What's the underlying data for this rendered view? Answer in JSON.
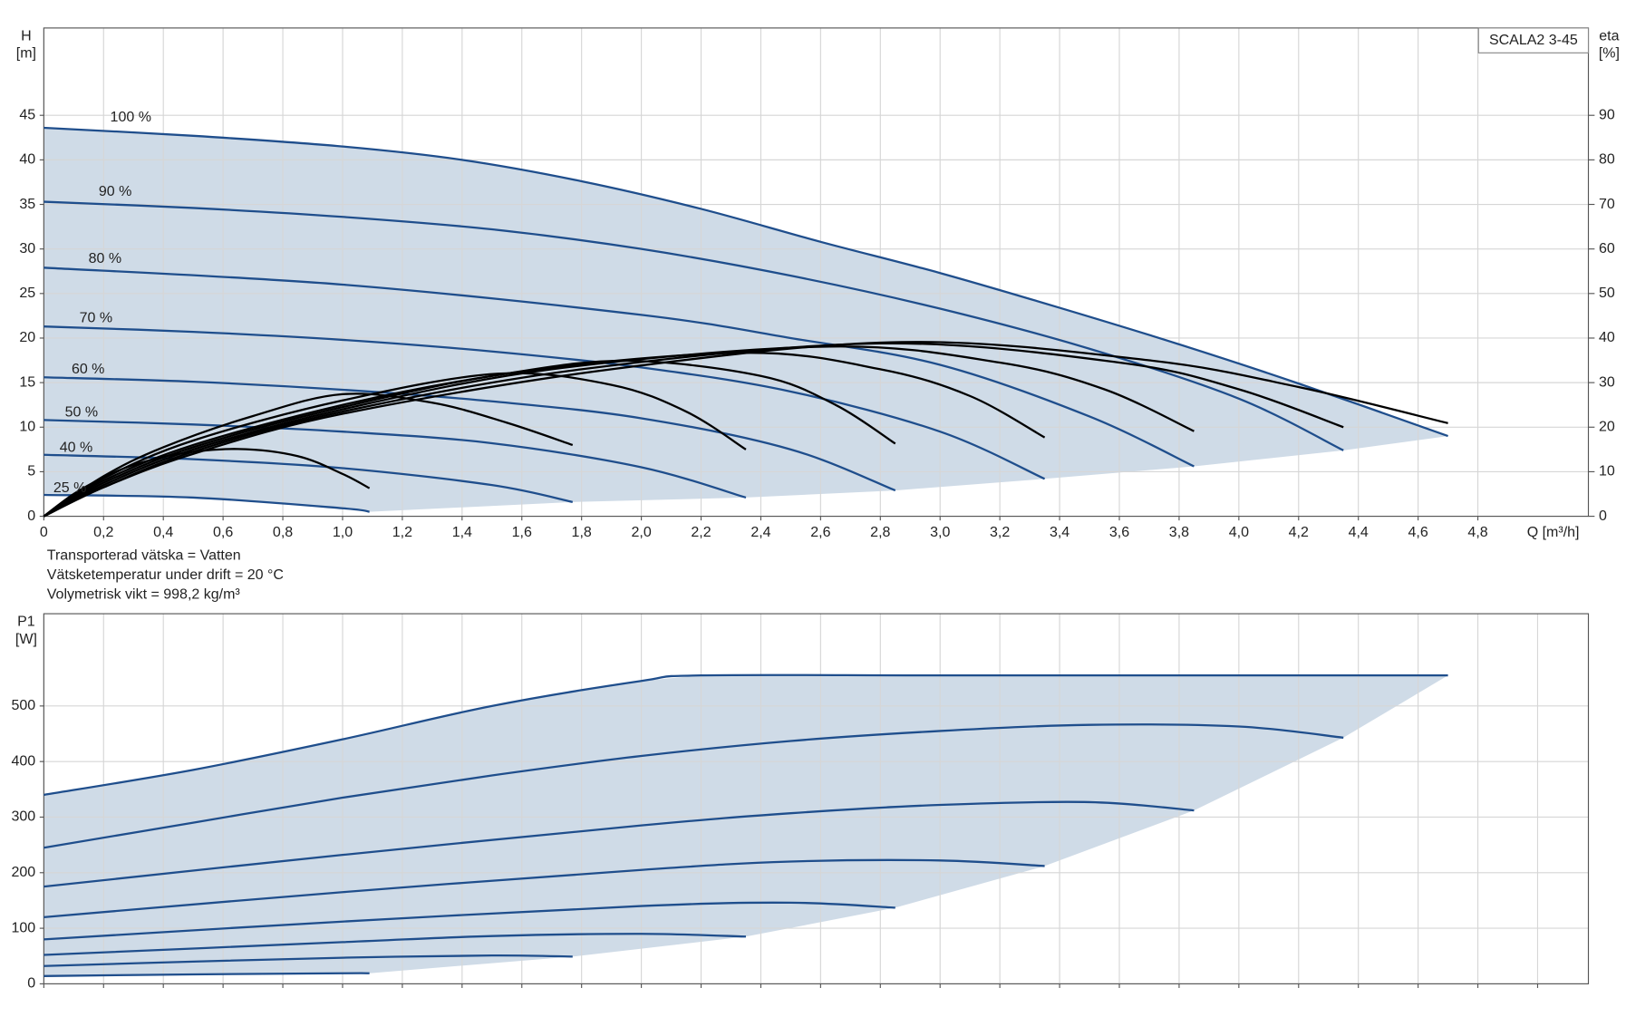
{
  "chart_data": [
    {
      "type": "line",
      "model": "SCALA2 3-45",
      "ylabel": "H",
      "yunit": "[m]",
      "y2label": "eta",
      "y2unit": "[%]",
      "xlabel": "Q [m³/h]",
      "notes": [
        "Transporterad vätska = Vatten",
        "Vätsketemperatur under drift = 20 °C",
        "Volymetrisk vikt = 998,2 kg/m³"
      ],
      "xlim": [
        0,
        5.17
      ],
      "ylim": [
        0,
        54.8
      ],
      "y2lim": [
        0,
        109.6
      ],
      "xticks": [
        0,
        {
          "value": 0.2,
          "label": "0,2"
        },
        {
          "value": 0.4,
          "label": "0,4"
        },
        {
          "value": 0.6,
          "label": "0,6"
        },
        {
          "value": 0.8,
          "label": "0,8"
        },
        {
          "value": 1.0,
          "label": "1,0"
        },
        {
          "value": 1.2,
          "label": "1,2"
        },
        {
          "value": 1.4,
          "label": "1,4"
        },
        {
          "value": 1.6,
          "label": "1,6"
        },
        {
          "value": 1.8,
          "label": "1,8"
        },
        {
          "value": 2.0,
          "label": "2,0"
        },
        {
          "value": 2.2,
          "label": "2,2"
        },
        {
          "value": 2.4,
          "label": "2,4"
        },
        {
          "value": 2.6,
          "label": "2,6"
        },
        {
          "value": 2.8,
          "label": "2,8"
        },
        {
          "value": 3.0,
          "label": "3,0"
        },
        {
          "value": 3.2,
          "label": "3,2"
        },
        {
          "value": 3.4,
          "label": "3,4"
        },
        {
          "value": 3.6,
          "label": "3,6"
        },
        {
          "value": 3.8,
          "label": "3,8"
        },
        {
          "value": 4.0,
          "label": "4,0"
        },
        {
          "value": 4.2,
          "label": "4,2"
        },
        {
          "value": 4.4,
          "label": "4,4"
        },
        {
          "value": 4.6,
          "label": "4,6"
        },
        {
          "value": 4.8,
          "label": "4,8"
        }
      ],
      "yticks": [
        0,
        5,
        10,
        15,
        20,
        25,
        30,
        35,
        40,
        45
      ],
      "y2ticks": [
        0,
        10,
        20,
        30,
        40,
        50,
        60,
        70,
        80,
        90
      ],
      "grid": true,
      "fill": "#cfdbe7",
      "series": [
        {
          "name": "100 %",
          "color": "#1f4e8c",
          "x": [
            0,
            0.5,
            1.0,
            1.4,
            1.8,
            2.2,
            2.6,
            3.0,
            3.4,
            3.8,
            4.2,
            4.7
          ],
          "values": [
            43.6,
            42.7,
            41.5,
            40.0,
            37.6,
            34.5,
            30.8,
            27.3,
            23.4,
            19.3,
            14.9,
            9.0
          ]
        },
        {
          "name": "90 %",
          "color": "#1f4e8c",
          "x": [
            0,
            0.5,
            1.0,
            1.5,
            2.0,
            2.5,
            3.0,
            3.5,
            4.0,
            4.35
          ],
          "values": [
            35.3,
            34.6,
            33.6,
            32.2,
            30.0,
            27.0,
            23.3,
            18.8,
            13.2,
            7.4
          ]
        },
        {
          "name": "80 %",
          "color": "#1f4e8c",
          "x": [
            0,
            1.0,
            2.0,
            2.5,
            3.0,
            3.5,
            3.85
          ],
          "values": [
            27.9,
            26.0,
            22.6,
            20.0,
            17.0,
            11.2,
            5.6
          ]
        },
        {
          "name": "70 %",
          "color": "#1f4e8c",
          "x": [
            0,
            0.5,
            1.0,
            1.5,
            2.0,
            2.5,
            3.0,
            3.35
          ],
          "values": [
            21.3,
            20.7,
            19.8,
            18.5,
            16.7,
            14.0,
            9.5,
            4.2
          ]
        },
        {
          "name": "60 %",
          "color": "#1f4e8c",
          "x": [
            0,
            0.5,
            1.0,
            1.5,
            2.0,
            2.5,
            2.85
          ],
          "values": [
            15.6,
            15.1,
            14.2,
            12.9,
            11.0,
            7.5,
            2.9
          ]
        },
        {
          "name": "50 %",
          "color": "#1f4e8c",
          "x": [
            0,
            0.5,
            1.0,
            1.5,
            2.0,
            2.35
          ],
          "values": [
            10.8,
            10.3,
            9.5,
            8.2,
            5.5,
            2.1
          ]
        },
        {
          "name": "40 %",
          "color": "#1f4e8c",
          "x": [
            0,
            0.5,
            1.0,
            1.5,
            1.77
          ],
          "values": [
            6.9,
            6.4,
            5.4,
            3.5,
            1.6
          ]
        },
        {
          "name": "25 %",
          "color": "#1f4e8c",
          "x": [
            0,
            0.5,
            1.0,
            1.09
          ],
          "values": [
            2.4,
            2.1,
            0.9,
            0.5
          ]
        },
        {
          "axis": "y2",
          "color": "#000000",
          "x": [
            0,
            0.1,
            0.2,
            0.3,
            0.45,
            0.65,
            0.85,
            1.0,
            1.09
          ],
          "values": [
            0,
            5,
            8.7,
            11.5,
            14,
            15.1,
            13.5,
            9.5,
            6.3
          ]
        },
        {
          "axis": "y2",
          "color": "#000000",
          "x": [
            0,
            0.2,
            0.4,
            0.7,
            1.0,
            1.3,
            1.55,
            1.77
          ],
          "values": [
            0,
            9,
            15.5,
            22.5,
            27.4,
            25.5,
            21,
            16
          ]
        },
        {
          "axis": "y2",
          "color": "#000000",
          "x": [
            0,
            0.2,
            0.5,
            1.0,
            1.52,
            1.9,
            2.15,
            2.35
          ],
          "values": [
            0,
            8.5,
            17,
            26,
            32,
            29.5,
            23.5,
            15
          ]
        },
        {
          "axis": "y2",
          "color": "#000000",
          "x": [
            0,
            0.2,
            0.5,
            1.0,
            1.5,
            1.94,
            2.4,
            2.65,
            2.85
          ],
          "values": [
            0,
            8,
            16,
            25,
            31.5,
            34.9,
            31.5,
            25,
            16.3
          ]
        },
        {
          "axis": "y2",
          "color": "#000000",
          "x": [
            0,
            0.2,
            0.5,
            1.0,
            1.6,
            2.35,
            2.8,
            3.1,
            3.35
          ],
          "values": [
            0,
            7.5,
            15.5,
            24.5,
            32.5,
            36.7,
            33,
            27,
            17.7
          ]
        },
        {
          "axis": "y2",
          "color": "#000000",
          "x": [
            0,
            0.2,
            0.5,
            1.0,
            1.7,
            2.63,
            3.2,
            3.55,
            3.85
          ],
          "values": [
            0,
            7,
            15,
            24,
            33,
            38.1,
            34.5,
            28.5,
            19.1
          ]
        },
        {
          "axis": "y2",
          "color": "#000000",
          "x": [
            0,
            0.2,
            0.5,
            1.0,
            1.8,
            2.8,
            3.6,
            4.0,
            4.35
          ],
          "values": [
            0,
            6.5,
            14.5,
            23.5,
            33,
            38.8,
            34.5,
            28.5,
            20
          ]
        },
        {
          "axis": "y2",
          "color": "#000000",
          "x": [
            0,
            0.2,
            0.5,
            1.0,
            1.9,
            2.87,
            3.7,
            4.2,
            4.7
          ],
          "values": [
            0,
            6.5,
            14,
            23,
            33,
            39.1,
            35,
            29,
            20.9
          ]
        }
      ]
    },
    {
      "type": "line",
      "ylabel": "P1",
      "yunit": "[W]",
      "xlim": [
        0,
        5.17
      ],
      "ylim": [
        0,
        666
      ],
      "xticks": [
        0,
        0.2,
        0.4,
        0.6,
        0.8,
        1.0,
        1.2,
        1.4,
        1.6,
        1.8,
        2.0,
        2.2,
        2.4,
        2.6,
        2.8,
        3.0,
        3.2,
        3.4,
        3.6,
        3.8,
        4.0,
        4.2,
        4.4,
        4.6,
        4.8,
        5.0
      ],
      "yticks": [
        0,
        100,
        200,
        300,
        400,
        500
      ],
      "grid": true,
      "fill": "#cfdbe7",
      "series": [
        {
          "color": "#1f4e8c",
          "x": [
            0,
            0.5,
            1.0,
            1.5,
            2.0,
            2.2,
            3.0,
            4.0,
            4.7
          ],
          "values": [
            340,
            385,
            440,
            500,
            545,
            555,
            555,
            555,
            555
          ]
        },
        {
          "color": "#1f4e8c",
          "x": [
            0,
            0.5,
            1.0,
            1.5,
            2.0,
            2.5,
            3.0,
            3.5,
            4.0,
            4.35
          ],
          "values": [
            245,
            290,
            335,
            375,
            410,
            437,
            455,
            466,
            463,
            443
          ]
        },
        {
          "color": "#1f4e8c",
          "x": [
            0,
            1.0,
            2.0,
            2.5,
            3.0,
            3.5,
            3.85
          ],
          "values": [
            175,
            232,
            285,
            307,
            322,
            327,
            312
          ]
        },
        {
          "color": "#1f4e8c",
          "x": [
            0,
            1.0,
            2.0,
            2.5,
            3.0,
            3.35
          ],
          "values": [
            120,
            165,
            205,
            220,
            222,
            212
          ]
        },
        {
          "color": "#1f4e8c",
          "x": [
            0,
            1.0,
            2.0,
            2.5,
            2.85
          ],
          "values": [
            80,
            112,
            140,
            146,
            137
          ]
        },
        {
          "color": "#1f4e8c",
          "x": [
            0,
            1.0,
            1.5,
            2.0,
            2.35
          ],
          "values": [
            52,
            75,
            86,
            90,
            85
          ]
        },
        {
          "color": "#1f4e8c",
          "x": [
            0,
            0.5,
            1.0,
            1.5,
            1.77
          ],
          "values": [
            32,
            40,
            47,
            51,
            49
          ]
        },
        {
          "color": "#1f4e8c",
          "x": [
            0,
            0.5,
            1.0,
            1.09
          ],
          "values": [
            14,
            17,
            19,
            19
          ]
        }
      ]
    }
  ]
}
